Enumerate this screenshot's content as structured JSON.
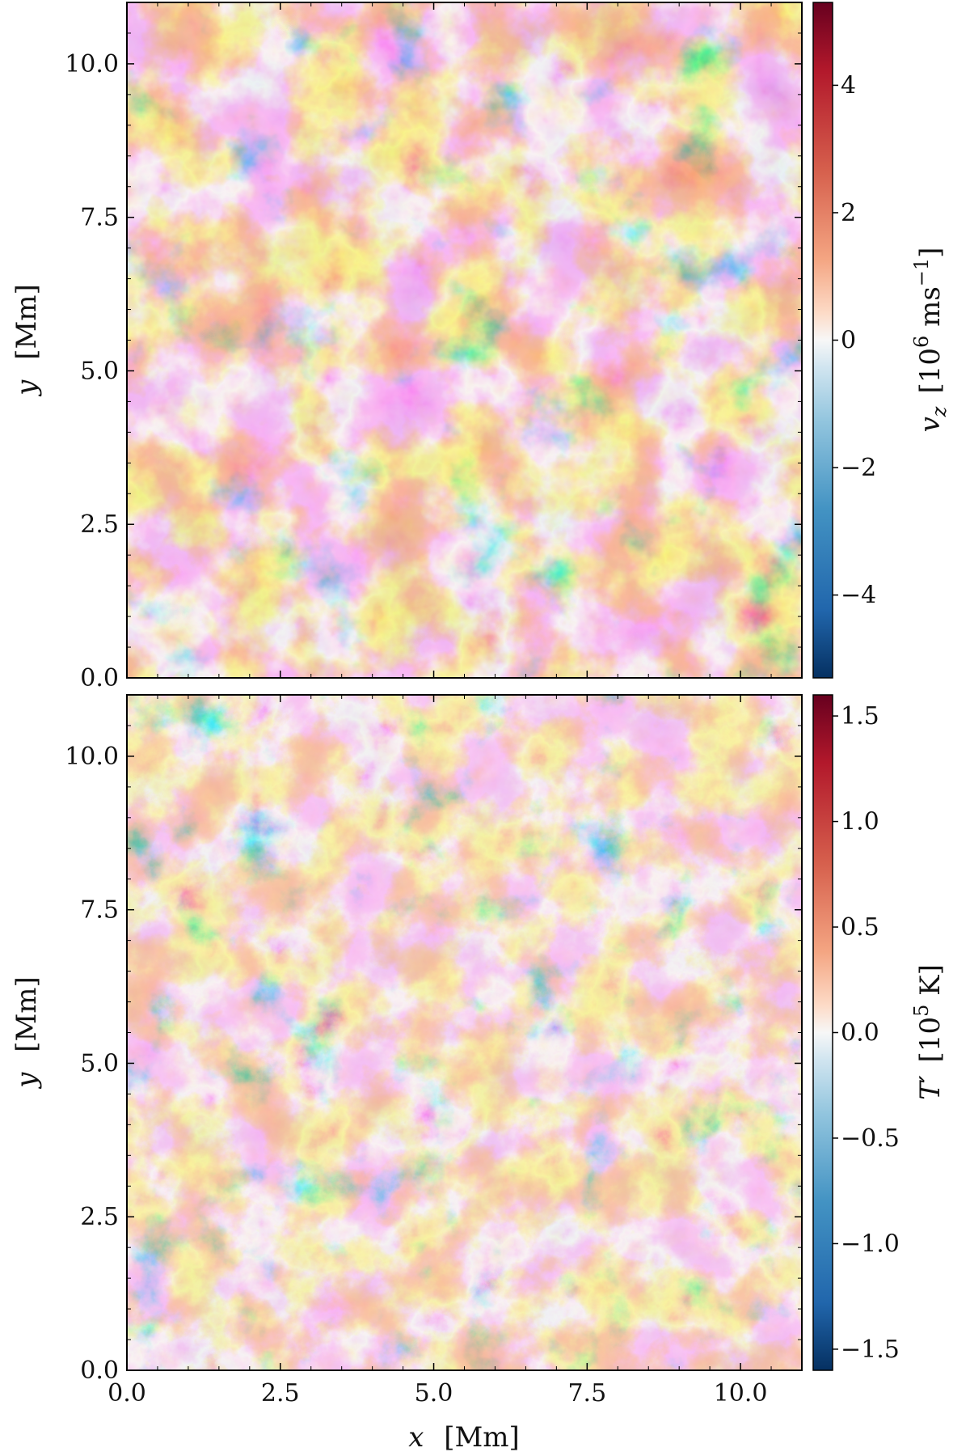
{
  "chart_data": [
    {
      "type": "heatmap",
      "panel": "top",
      "xlim": [
        0.0,
        11.0
      ],
      "ylim": [
        0.0,
        11.0
      ],
      "x_ticks": [
        "0.0",
        "2.5",
        "5.0",
        "7.5",
        "10.0"
      ],
      "y_ticks": [
        "0.0",
        "2.5",
        "5.0",
        "7.5",
        "10.0"
      ],
      "xlabel_var": "",
      "xlabel_unit": "",
      "ylabel_var": "y",
      "ylabel_unit": "[Mm]",
      "colorbar": {
        "range": [
          -5.3,
          5.3
        ],
        "ticks": [
          -4,
          -2,
          0,
          2,
          4
        ],
        "tick_labels": [
          "−4",
          "−2",
          "0",
          "2",
          "4"
        ],
        "label_var": "v",
        "label_sub": "z",
        "label_unit_a": "[10",
        "label_unit_exp": "6",
        "label_unit_b": " ms",
        "label_unit_exp2": "−1",
        "label_unit_c": "]",
        "colormap": "RdBu_r"
      }
    },
    {
      "type": "heatmap",
      "panel": "bottom",
      "xlim": [
        0.0,
        11.0
      ],
      "ylim": [
        0.0,
        11.0
      ],
      "x_ticks": [
        "0.0",
        "2.5",
        "5.0",
        "7.5",
        "10.0"
      ],
      "y_ticks": [
        "0.0",
        "2.5",
        "5.0",
        "7.5",
        "10.0"
      ],
      "xlabel_var": "x",
      "xlabel_unit": "[Mm]",
      "ylabel_var": "y",
      "ylabel_unit": "[Mm]",
      "colorbar": {
        "range": [
          -1.6,
          1.6
        ],
        "ticks": [
          -1.5,
          -1.0,
          -0.5,
          0.0,
          0.5,
          1.0,
          1.5
        ],
        "tick_labels": [
          "−1.5",
          "−1.0",
          "−0.5",
          "0.0",
          "0.5",
          "1.0",
          "1.5"
        ],
        "label_var": "T′",
        "label_unit_a": "[10",
        "label_unit_exp": "5",
        "label_unit_b": " K]",
        "colormap": "RdBu_r"
      }
    }
  ],
  "colors": {
    "strong_blue": "#0b3c7a",
    "mid_blue": "#3f8cc2",
    "light_blue": "#bcd9ec",
    "white": "#f7f7f7",
    "light_red": "#f6c2a6",
    "mid_red": "#e58467",
    "strong_red": "#67001f"
  }
}
